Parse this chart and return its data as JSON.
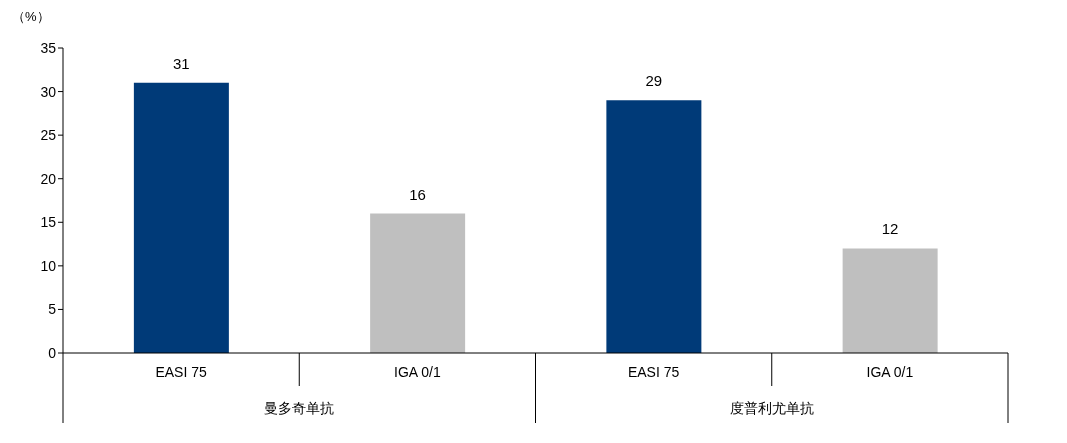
{
  "chart_data": {
    "type": "bar",
    "ylabel": "（%）",
    "categories": [
      "EASI 75",
      "IGA 0/1",
      "EASI 75",
      "IGA 0/1"
    ],
    "values": [
      31,
      16,
      29,
      12
    ],
    "colors": [
      "#003a78",
      "#bfbfbf",
      "#003a78",
      "#bfbfbf"
    ],
    "ylim": [
      0,
      35
    ],
    "yticks": [
      0,
      5,
      10,
      15,
      20,
      25,
      30,
      35
    ],
    "grid": false,
    "data_labels": true,
    "annotations": [
      "曼多奇单抗",
      "度普利尤单抗"
    ]
  }
}
